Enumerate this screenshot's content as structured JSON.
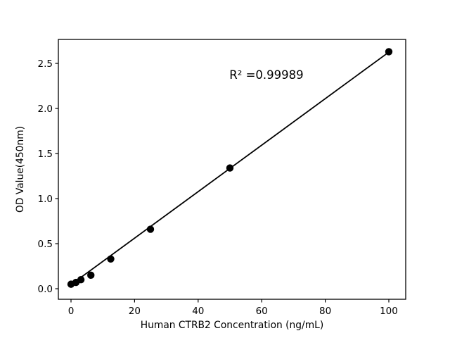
{
  "figure": {
    "background": "#ffffff",
    "foreground": "#000000"
  },
  "chart_data": {
    "type": "scatter",
    "title": "",
    "xlabel": "Human CTRB2 Concentration (ng/mL)",
    "ylabel": "OD Value(450nm)",
    "x": [
      0,
      1.5625,
      3.125,
      6.25,
      12.5,
      25,
      50,
      100
    ],
    "y": [
      0.05,
      0.07,
      0.1,
      0.15,
      0.33,
      0.66,
      1.34,
      2.63
    ],
    "trendline": {
      "x": [
        0,
        100
      ],
      "y": [
        0.045,
        2.625
      ]
    },
    "annotation": {
      "text": "R² =0.99989",
      "x": 61.5,
      "y": 2.33
    },
    "xlim": [
      -3.98,
      105.31
    ],
    "ylim": [
      -0.117,
      2.766
    ],
    "xticks": [
      "0",
      "20",
      "40",
      "60",
      "80",
      "100"
    ],
    "xtick_values": [
      0,
      20,
      40,
      60,
      80,
      100
    ],
    "yticks": [
      "0.0",
      "0.5",
      "1.0",
      "1.5",
      "2.0",
      "2.5"
    ],
    "ytick_values": [
      0.0,
      0.5,
      1.0,
      1.5,
      2.0,
      2.5
    ],
    "marker_color": "#000000",
    "line_color": "#000000",
    "grid": false,
    "legend_position": "none"
  }
}
